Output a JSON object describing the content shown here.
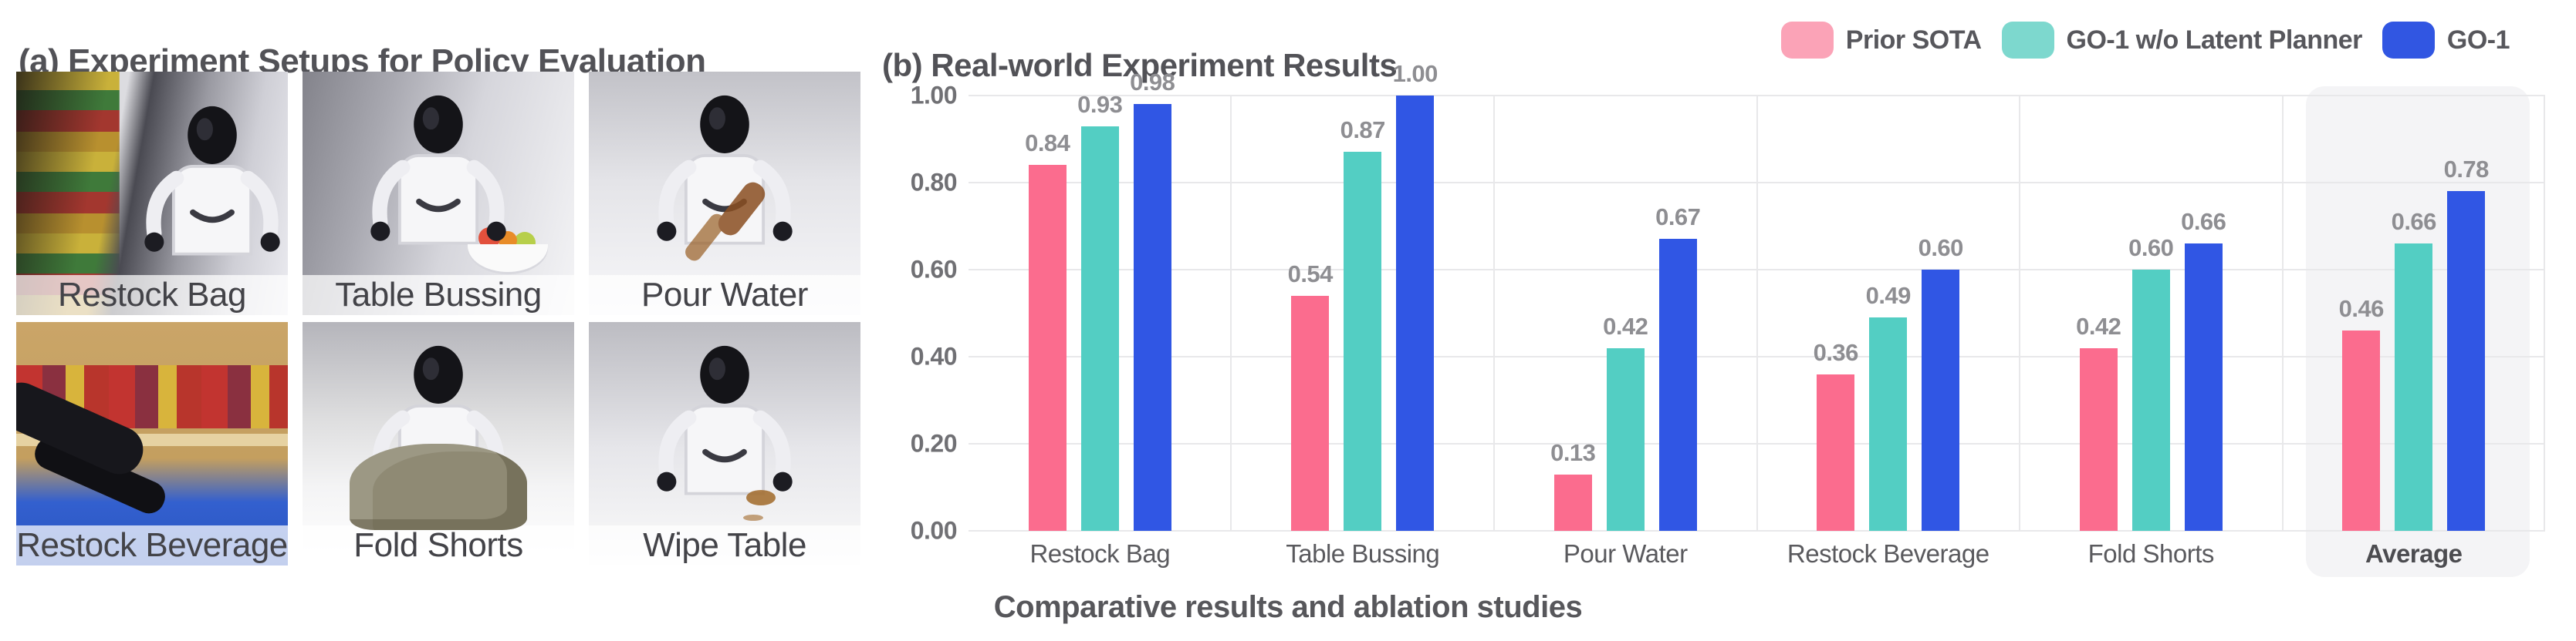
{
  "setups": {
    "title": "(a) Experiment Setups for Policy Evaluation",
    "photos": [
      {
        "label": "Restock Bag",
        "scene": "restock-bag",
        "robot": true
      },
      {
        "label": "Table Bussing",
        "scene": "table-bussing",
        "robot": true
      },
      {
        "label": "Pour Water",
        "scene": "pour-water",
        "robot": true
      },
      {
        "label": "Restock Beverage",
        "scene": "restock-beverage",
        "robot": false
      },
      {
        "label": "Fold Shorts",
        "scene": "fold-shorts",
        "robot": true
      },
      {
        "label": "Wipe Table",
        "scene": "wipe-table",
        "robot": true
      }
    ]
  },
  "results": {
    "title": "(b) Real-world Experiment Results",
    "caption": "Comparative results and ablation studies"
  },
  "chart_data": {
    "type": "bar",
    "categories": [
      "Restock Bag",
      "Table Bussing",
      "Pour Water",
      "Restock Beverage",
      "Fold Shorts",
      "Average"
    ],
    "series": [
      {
        "name": "Prior SOTA",
        "color": "#FB6C8E",
        "legend_color": "#FBA3B7",
        "values": [
          0.84,
          0.54,
          0.13,
          0.36,
          0.42,
          0.46
        ]
      },
      {
        "name": "GO-1 w/o Latent Planner",
        "color": "#53CEC3",
        "legend_color": "#7DD8CE",
        "values": [
          0.93,
          0.87,
          0.42,
          0.49,
          0.6,
          0.66
        ]
      },
      {
        "name": "GO-1",
        "color": "#3056E4",
        "legend_color": "#3156E2",
        "values": [
          0.98,
          1.0,
          0.67,
          0.6,
          0.66,
          0.78
        ]
      }
    ],
    "ylim": [
      0,
      1.0
    ],
    "yticks": [
      "0.00",
      "0.20",
      "0.40",
      "0.60",
      "0.80",
      "1.00"
    ],
    "grid": true,
    "legend_position": "top-right",
    "highlight_category": "Average",
    "highlight_color": "#f4f4f6",
    "gridline_color": "#e8e8ea",
    "value_label_format": "2dp"
  }
}
